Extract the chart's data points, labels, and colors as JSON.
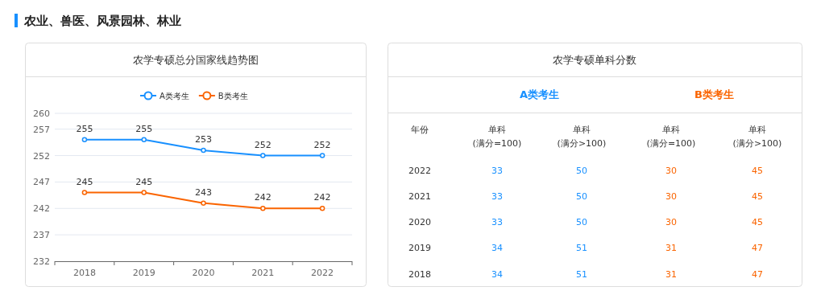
{
  "chart_data": [
    {
      "type": "line",
      "title": "农业、兽医、风景园林、林业",
      "subtitle": "农学专硕总分国家线趋势图",
      "categories": [
        "2018",
        "2019",
        "2020",
        "2021",
        "2022"
      ],
      "series": [
        {
          "name": "A类考生",
          "color": "#1890ff",
          "values": [
            255,
            255,
            253,
            252,
            252
          ]
        },
        {
          "name": "B类考生",
          "color": "#fa6400",
          "values": [
            245,
            245,
            243,
            242,
            242
          ]
        }
      ],
      "ylim": [
        232,
        260
      ],
      "yticks": [
        232,
        237,
        242,
        247,
        252,
        257,
        260
      ],
      "grid": "y",
      "legend": "top",
      "marker": "circle",
      "line_style": "solid",
      "data_labels": true
    },
    {
      "type": "heatmap",
      "title": "农学专硕单科分数",
      "ylabel": "年份",
      "annotations": [
        "A类考生",
        "B类考生"
      ],
      "categories": [
        "单科 (满分=100)",
        "单科 (满分>100)",
        "单科 (满分=100)",
        "单科 (满分>100)"
      ],
      "y_categories": [
        "2022",
        "2021",
        "2020",
        "2019",
        "2018"
      ],
      "colors": [
        "#1890ff",
        "#1890ff",
        "#fa6400",
        "#fa6400"
      ],
      "data_labels": true,
      "cells": [
        [
          33,
          50,
          30,
          45
        ],
        [
          33,
          50,
          30,
          45
        ],
        [
          33,
          50,
          30,
          45
        ],
        [
          34,
          51,
          31,
          47
        ],
        [
          34,
          51,
          31,
          47
        ]
      ]
    }
  ]
}
